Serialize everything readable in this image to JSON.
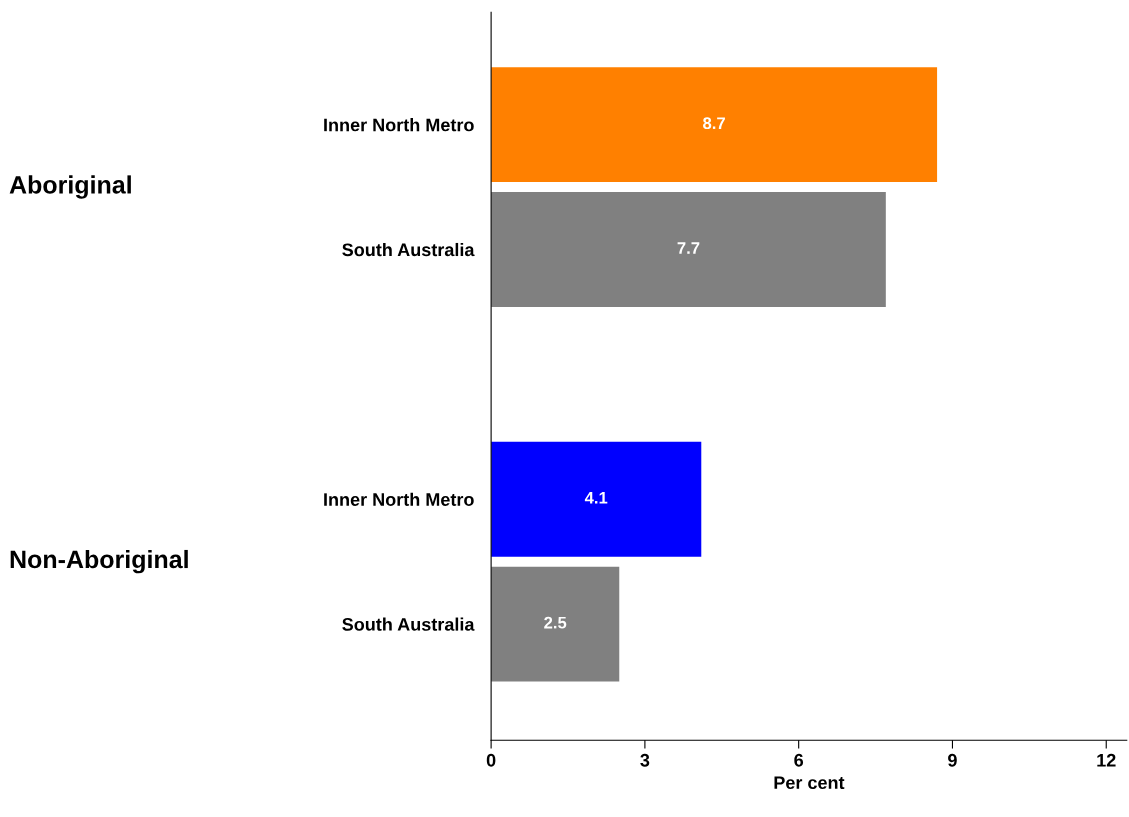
{
  "chart_data": {
    "type": "bar",
    "orientation": "horizontal",
    "categories": [
      "Inner North Metro",
      "South Australia",
      null,
      "Inner North Metro",
      "South Australia"
    ],
    "values": [
      8.7,
      7.7,
      null,
      4.1,
      2.5
    ],
    "colors": [
      "#ff8000",
      "#808080",
      "#808080",
      "#0000ff",
      "#808080"
    ],
    "data_labels": true,
    "xlabel": "Per cent",
    "xlim": [
      0,
      12.4
    ],
    "xticks": [
      0,
      3,
      6,
      9,
      12
    ],
    "annotations": [
      "Aboriginal",
      "Non-Aboriginal"
    ],
    "grid": false
  }
}
